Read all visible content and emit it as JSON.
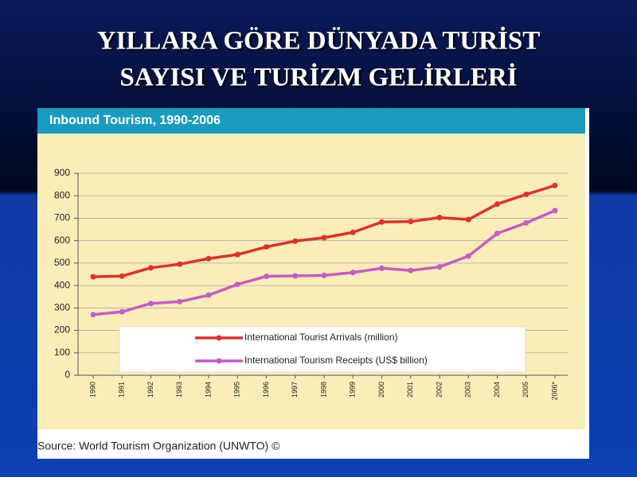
{
  "slide_title": [
    "YILLARA GÖRE DÜNYADA TURİST",
    "SAYISI VE TURİZM GELİRLERİ"
  ],
  "chart_data": {
    "type": "line",
    "title": "Inbound Tourism, 1990-2006",
    "source": "Source: World Tourism Organization (UNWTO) ©",
    "categories": [
      "1990",
      "1991",
      "1992",
      "1993",
      "1994",
      "1995",
      "1996",
      "1997",
      "1998",
      "1999",
      "2000",
      "2001",
      "2002",
      "2003",
      "2004",
      "2005",
      "2006*"
    ],
    "series": [
      {
        "name": "International Tourist Arrivals (million)",
        "color": "#e0302a",
        "values": [
          439,
          442,
          479,
          495,
          520,
          538,
          572,
          598,
          613,
          637,
          683,
          685,
          703,
          694,
          763,
          806,
          846
        ]
      },
      {
        "name": "International Tourism Receipts (US$ billion)",
        "color": "#c45cc8",
        "values": [
          270,
          283,
          320,
          328,
          357,
          405,
          441,
          443,
          445,
          458,
          477,
          467,
          483,
          531,
          632,
          679,
          734
        ]
      }
    ],
    "ylim": [
      0,
      900
    ],
    "yticks": [
      0,
      100,
      200,
      300,
      400,
      500,
      600,
      700,
      800,
      900
    ],
    "grid": true
  }
}
